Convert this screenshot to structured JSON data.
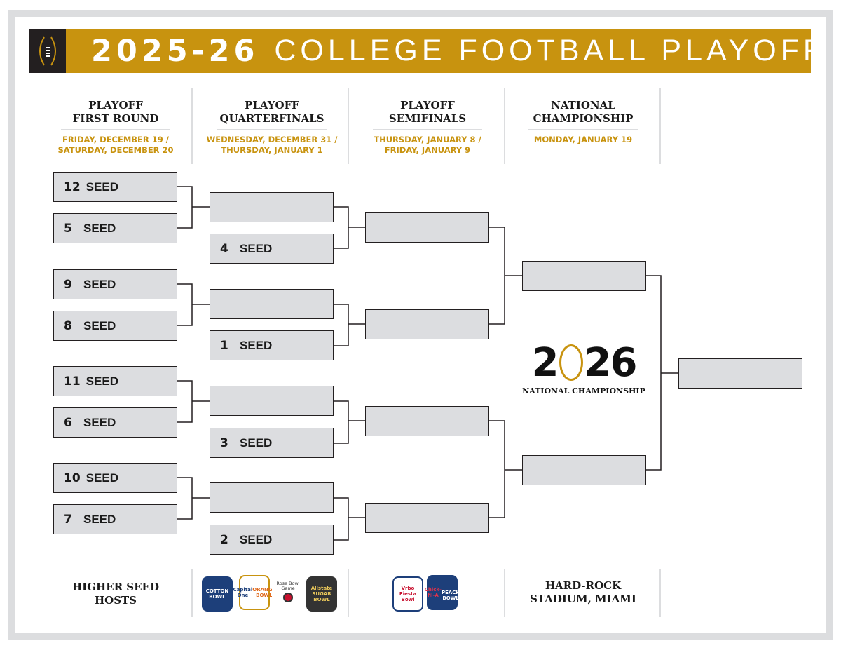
{
  "header": {
    "year": "2025-26",
    "title": "COLLEGE FOOTBALL PLAYOFF",
    "brand_color": "#c8930f"
  },
  "rounds": [
    {
      "name_line1": "PLAYOFF",
      "name_line2": "FIRST ROUND",
      "date_line1": "FRIDAY, DECEMBER 19 /",
      "date_line2": "SATURDAY, DECEMBER 20"
    },
    {
      "name_line1": "PLAYOFF",
      "name_line2": "QUARTERFINALS",
      "date_line1": "WEDNESDAY, DECEMBER 31 /",
      "date_line2": "THURSDAY, JANUARY 1"
    },
    {
      "name_line1": "PLAYOFF",
      "name_line2": "SEMIFINALS",
      "date_line1": "THURSDAY, JANUARY 8 /",
      "date_line2": "FRIDAY, JANUARY 9"
    },
    {
      "name_line1": "NATIONAL",
      "name_line2": "CHAMPIONSHIP",
      "date_line1": "MONDAY, JANUARY 19",
      "date_line2": ""
    }
  ],
  "seed_label": "SEED",
  "first_round": [
    "12",
    "5",
    "9",
    "8",
    "11",
    "6",
    "10",
    "7"
  ],
  "quarterfinal_byes": [
    "4",
    "1",
    "3",
    "2"
  ],
  "championship_logo": {
    "year": "2026",
    "subtitle": "NATIONAL CHAMPIONSHIP"
  },
  "footer": {
    "first_round_host_line1": "HIGHER SEED",
    "first_round_host_line2": "HOSTS",
    "quarterfinal_bowls": [
      "Cotton Bowl",
      "Orange Bowl",
      "Rose Bowl Game",
      "Sugar Bowl"
    ],
    "semifinal_bowls": [
      "Fiesta Bowl",
      "Peach Bowl"
    ],
    "championship_venue_line1": "HARD-ROCK",
    "championship_venue_line2": "STADIUM, MIAMI"
  }
}
